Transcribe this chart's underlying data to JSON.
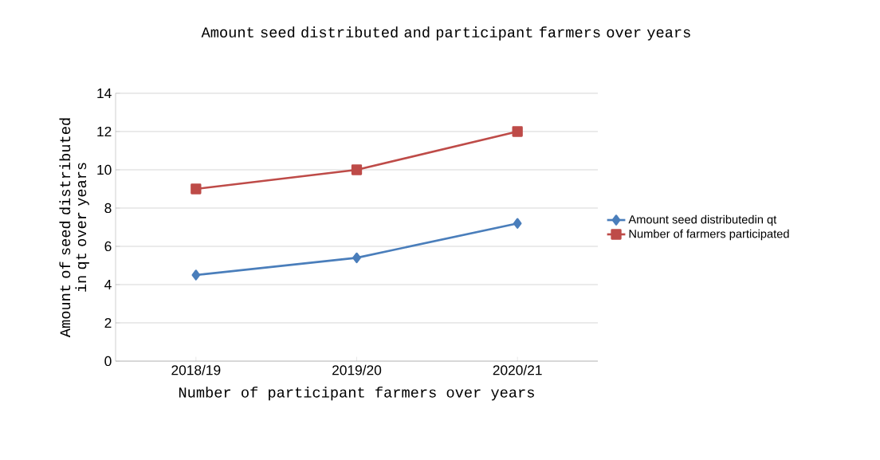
{
  "chart_data": {
    "type": "line",
    "title": "Amount seed distributed and participant farmers over years",
    "xlabel": "Number of participant farmers over years",
    "ylabel": "Amount of seed distributed in qt over years",
    "categories": [
      "2018/19",
      "2019/20",
      "2020/21"
    ],
    "series": [
      {
        "name": "Amount seed distributedin qt",
        "color": "#4a7ebb",
        "marker": "diamond",
        "values": [
          4.5,
          5.4,
          7.2
        ]
      },
      {
        "name": "Number of farmers participated",
        "color": "#be4b48",
        "marker": "square",
        "values": [
          9,
          10,
          12
        ]
      }
    ],
    "ylim": [
      0,
      14
    ],
    "yticks": [
      0,
      2,
      4,
      6,
      8,
      10,
      12,
      14
    ],
    "grid": "y",
    "legend": "right",
    "line_style": "solid"
  }
}
